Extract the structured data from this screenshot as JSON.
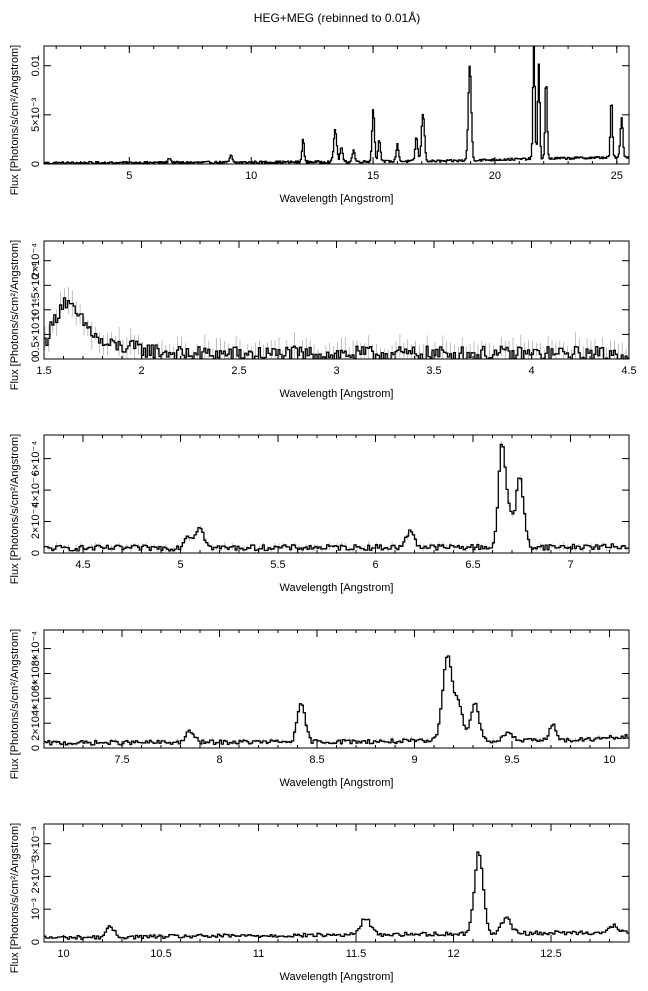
{
  "figure": {
    "title": "HEG+MEG (rebinned to 0.01Å)"
  },
  "chart_data": [
    {
      "type": "line",
      "xlabel": "Wavelength [Angstrom]",
      "ylabel": "Flux [Photons/s/cm²/Angstrom]",
      "xlim": [
        1.5,
        25.5
      ],
      "ylim": [
        0,
        0.012
      ],
      "xticks": [
        5,
        10,
        15,
        20,
        25
      ],
      "xtick_labels": [
        "5",
        "10",
        "15",
        "20",
        "25"
      ],
      "yticks": [
        0,
        0.005,
        0.01
      ],
      "ytick_labels": [
        "0",
        "5×10⁻³",
        "0.01"
      ],
      "x_minor_step": 1,
      "continuum": [
        [
          1.5,
          0.0001
        ],
        [
          8,
          0.00015
        ],
        [
          12,
          0.0002
        ],
        [
          18,
          0.0003
        ],
        [
          21,
          0.0005
        ],
        [
          25.5,
          0.0007
        ]
      ],
      "lines": [
        {
          "x": 6.65,
          "y": 0.0005,
          "w": 0.05
        },
        {
          "x": 9.17,
          "y": 0.0007,
          "w": 0.05
        },
        {
          "x": 12.13,
          "y": 0.0025,
          "w": 0.04
        },
        {
          "x": 13.45,
          "y": 0.0033,
          "w": 0.06
        },
        {
          "x": 13.7,
          "y": 0.0015,
          "w": 0.05
        },
        {
          "x": 14.2,
          "y": 0.0012,
          "w": 0.05
        },
        {
          "x": 15.01,
          "y": 0.0053,
          "w": 0.05
        },
        {
          "x": 15.26,
          "y": 0.0022,
          "w": 0.05
        },
        {
          "x": 16.0,
          "y": 0.0017,
          "w": 0.05
        },
        {
          "x": 16.78,
          "y": 0.0025,
          "w": 0.05
        },
        {
          "x": 17.05,
          "y": 0.0049,
          "w": 0.06
        },
        {
          "x": 18.97,
          "y": 0.0097,
          "w": 0.06
        },
        {
          "x": 21.6,
          "y": 0.012,
          "w": 0.04
        },
        {
          "x": 21.8,
          "y": 0.0095,
          "w": 0.04
        },
        {
          "x": 22.1,
          "y": 0.0082,
          "w": 0.04
        },
        {
          "x": 24.78,
          "y": 0.006,
          "w": 0.04
        },
        {
          "x": 25.2,
          "y": 0.004,
          "w": 0.05
        }
      ],
      "noise": 0.00012,
      "bin": 0.04,
      "show_errors": false
    },
    {
      "type": "line",
      "xlabel": "Wavelength [Angstrom]",
      "ylabel": "Flux [Photons/s/cm²/Angstrom]",
      "xlim": [
        1.5,
        4.5
      ],
      "ylim": [
        0,
        0.00024
      ],
      "xticks": [
        1.5,
        2,
        2.5,
        3,
        3.5,
        4,
        4.5
      ],
      "xtick_labels": [
        "1.5",
        "2",
        "2.5",
        "3",
        "3.5",
        "4",
        "4.5"
      ],
      "yticks": [
        0,
        5e-05,
        0.0001,
        0.00015,
        0.0002
      ],
      "ytick_labels": [
        "0",
        "0.5×10⁻⁴",
        "10⁻⁴",
        "1.5×10⁻⁴",
        "2×10⁻⁴"
      ],
      "x_minor_step": 0.1,
      "continuum": [
        [
          1.5,
          3e-05
        ],
        [
          1.6,
          0.00012
        ],
        [
          1.8,
          3e-05
        ],
        [
          2.2,
          1e-05
        ],
        [
          4.5,
          1e-05
        ]
      ],
      "lines": [],
      "noise": 1.6e-05,
      "bin": 0.01,
      "show_errors": true,
      "err_scale": 1.2
    },
    {
      "type": "line",
      "xlabel": "Wavelength [Angstrom]",
      "ylabel": "Flux [Photons/s/cm²/Angstrom]",
      "xlim": [
        4.3,
        7.3
      ],
      "ylim": [
        0,
        0.00075
      ],
      "xticks": [
        4.5,
        5,
        5.5,
        6,
        6.5,
        7
      ],
      "xtick_labels": [
        "4.5",
        "5",
        "5.5",
        "6",
        "6.5",
        "7"
      ],
      "yticks": [
        0,
        0.0002,
        0.0004,
        0.0006
      ],
      "ytick_labels": [
        "0",
        "2×10⁻⁴",
        "4×10⁻⁴",
        "6×10⁻⁴"
      ],
      "x_minor_step": 0.1,
      "continuum": [
        [
          4.3,
          3e-05
        ],
        [
          7.3,
          4e-05
        ]
      ],
      "lines": [
        {
          "x": 5.04,
          "y": 8e-05,
          "w": 0.02
        },
        {
          "x": 5.1,
          "y": 0.00014,
          "w": 0.02
        },
        {
          "x": 6.18,
          "y": 0.00011,
          "w": 0.02
        },
        {
          "x": 6.65,
          "y": 0.00066,
          "w": 0.018
        },
        {
          "x": 6.69,
          "y": 0.00018,
          "w": 0.015
        },
        {
          "x": 6.74,
          "y": 0.00044,
          "w": 0.02
        }
      ],
      "noise": 1.8e-05,
      "bin": 0.01,
      "show_errors": true,
      "err_scale": 0.9
    },
    {
      "type": "line",
      "xlabel": "Wavelength [Angstrom]",
      "ylabel": "Flux [Photons/s/cm²/Angstrom]",
      "xlim": [
        7.1,
        10.1
      ],
      "ylim": [
        0,
        0.00095
      ],
      "xticks": [
        7.5,
        8,
        8.5,
        9,
        9.5,
        10
      ],
      "xtick_labels": [
        "7.5",
        "8",
        "8.5",
        "9",
        "9.5",
        "10"
      ],
      "yticks": [
        0,
        0.0002,
        0.0004,
        0.0006,
        0.0008
      ],
      "ytick_labels": [
        "0",
        "2×10⁻⁴",
        "4×10⁻⁴",
        "6×10⁻⁴",
        "8×10⁻⁴"
      ],
      "x_minor_step": 0.1,
      "continuum": [
        [
          7.1,
          4e-05
        ],
        [
          9.8,
          6e-05
        ],
        [
          10.1,
          9e-05
        ]
      ],
      "lines": [
        {
          "x": 7.85,
          "y": 9e-05,
          "w": 0.02
        },
        {
          "x": 8.42,
          "y": 0.0003,
          "w": 0.02
        },
        {
          "x": 9.17,
          "y": 0.0007,
          "w": 0.025
        },
        {
          "x": 9.23,
          "y": 0.00028,
          "w": 0.02
        },
        {
          "x": 9.31,
          "y": 0.0003,
          "w": 0.022
        },
        {
          "x": 9.48,
          "y": 8e-05,
          "w": 0.02
        },
        {
          "x": 9.71,
          "y": 0.00012,
          "w": 0.02
        }
      ],
      "noise": 1.8e-05,
      "bin": 0.01,
      "show_errors": true,
      "err_scale": 0.8
    },
    {
      "type": "line",
      "xlabel": "Wavelength [Angstrom]",
      "ylabel": "Flux [Photons/s/cm²/Angstrom]",
      "xlim": [
        9.9,
        12.9
      ],
      "ylim": [
        0,
        0.0036
      ],
      "xticks": [
        10,
        10.5,
        11,
        11.5,
        12,
        12.5
      ],
      "xtick_labels": [
        "10",
        "10.5",
        "11",
        "11.5",
        "12",
        "12.5"
      ],
      "yticks": [
        0,
        0.001,
        0.002,
        0.003
      ],
      "ytick_labels": [
        "0",
        "10⁻³",
        "2×10⁻³",
        "3×10⁻³"
      ],
      "x_minor_step": 0.1,
      "continuum": [
        [
          9.9,
          0.00013
        ],
        [
          12.9,
          0.0003
        ]
      ],
      "lines": [
        {
          "x": 10.24,
          "y": 0.0003,
          "w": 0.02
        },
        {
          "x": 11.55,
          "y": 0.0005,
          "w": 0.025
        },
        {
          "x": 12.13,
          "y": 0.0025,
          "w": 0.022
        },
        {
          "x": 12.27,
          "y": 0.00045,
          "w": 0.025
        },
        {
          "x": 12.82,
          "y": 0.0002,
          "w": 0.02
        }
      ],
      "noise": 6e-05,
      "bin": 0.01,
      "show_errors": true,
      "err_scale": 0.6
    }
  ]
}
